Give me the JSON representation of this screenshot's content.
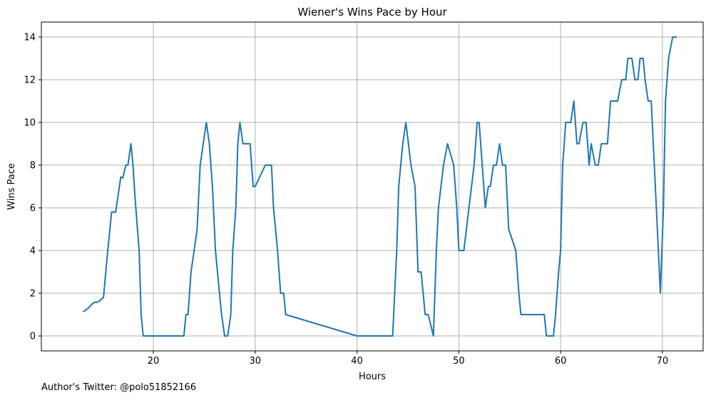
{
  "chart_data": {
    "type": "line",
    "title": "Wiener's Wins Pace by Hour",
    "xlabel": "Hours",
    "ylabel": "Wins Pace",
    "xlim": [
      9,
      74
    ],
    "ylim": [
      -0.7,
      14.7
    ],
    "xticks": [
      20,
      30,
      40,
      50,
      60,
      70
    ],
    "yticks": [
      0,
      2,
      4,
      6,
      8,
      10,
      12,
      14
    ],
    "grid": true,
    "series_color": "#1f77b4",
    "series": [
      {
        "x": [
          13.1,
          13.6,
          14.1,
          14.6,
          15.1,
          15.5,
          15.9,
          16.3,
          16.8,
          17.0,
          17.3,
          17.5,
          17.8,
          18.0,
          18.2,
          18.6,
          18.8,
          19.0,
          19.5,
          20.0,
          21.0,
          22.0,
          23.0,
          23.2,
          23.4,
          23.7,
          24.0,
          24.3,
          24.6,
          24.9,
          25.2,
          25.5,
          25.8,
          26.1,
          26.5,
          26.7,
          27.0,
          27.3,
          27.6,
          27.8,
          28.1,
          28.3,
          28.5,
          28.8,
          29.5,
          29.8,
          30.0,
          31.0,
          31.2,
          31.6,
          31.8,
          32.0,
          32.2,
          32.5,
          32.8,
          33.0,
          40.0,
          43.0,
          43.5,
          43.9,
          44.1,
          44.5,
          44.8,
          45.3,
          45.7,
          46.0,
          46.3,
          46.7,
          47.0,
          47.5,
          47.8,
          48.0,
          48.5,
          48.9,
          49.5,
          49.8,
          50.0,
          50.5,
          51.0,
          51.5,
          51.8,
          52.0,
          52.3,
          52.6,
          52.9,
          53.1,
          53.4,
          53.7,
          54.0,
          54.3,
          54.6,
          54.9,
          55.6,
          55.9,
          56.1,
          57.0,
          58.4,
          58.6,
          59.0,
          59.3,
          59.5,
          59.8,
          60.0,
          60.2,
          60.5,
          61.0,
          61.3,
          61.6,
          61.8,
          62.2,
          62.5,
          62.8,
          63.0,
          63.4,
          63.7,
          64.0,
          64.6,
          64.9,
          65.3,
          65.6,
          66.0,
          66.4,
          66.6,
          67.0,
          67.3,
          67.6,
          67.8,
          68.1,
          68.3,
          68.6,
          68.9,
          69.2,
          69.5,
          69.8,
          70.1,
          70.3,
          70.6,
          71.0,
          71.4
        ],
        "y": [
          1.13,
          1.3,
          1.55,
          1.6,
          1.8,
          3.9,
          5.8,
          5.8,
          7.45,
          7.4,
          8.0,
          8.0,
          9.0,
          8.0,
          6.5,
          4.0,
          1.0,
          0.0,
          0.0,
          0.0,
          0.0,
          0.0,
          0.0,
          1.0,
          1.0,
          3.0,
          4.0,
          5.0,
          8.0,
          9.0,
          10.0,
          9.0,
          7.0,
          4.0,
          2.0,
          1.0,
          0.0,
          0.0,
          1.0,
          4.0,
          6.0,
          9.0,
          10.0,
          9.0,
          9.0,
          7.0,
          7.0,
          8.0,
          8.0,
          8.0,
          6.0,
          5.0,
          4.0,
          2.0,
          2.0,
          1.0,
          0.0,
          0.0,
          0.0,
          4.0,
          7.0,
          9.0,
          10.0,
          8.0,
          7.0,
          3.0,
          3.0,
          1.0,
          1.0,
          0.0,
          4.0,
          6.0,
          8.0,
          9.0,
          8.0,
          6.0,
          4.0,
          4.0,
          6.0,
          8.0,
          10.0,
          10.0,
          8.0,
          6.0,
          7.0,
          7.0,
          8.0,
          8.0,
          9.0,
          8.0,
          8.0,
          5.0,
          4.0,
          2.0,
          1.0,
          1.0,
          1.0,
          0.0,
          0.0,
          0.0,
          1.0,
          3.0,
          4.0,
          8.0,
          10.0,
          10.0,
          11.0,
          9.0,
          9.0,
          10.0,
          10.0,
          8.0,
          9.0,
          8.0,
          8.0,
          9.0,
          9.0,
          11.0,
          11.0,
          11.0,
          12.0,
          12.0,
          13.0,
          13.0,
          12.0,
          12.0,
          13.0,
          13.0,
          12.0,
          11.0,
          11.0,
          8.0,
          5.0,
          2.0,
          6.0,
          11.0,
          13.0,
          14.0,
          14.0
        ]
      }
    ]
  },
  "footer": "Author's Twitter: @polo51852166"
}
